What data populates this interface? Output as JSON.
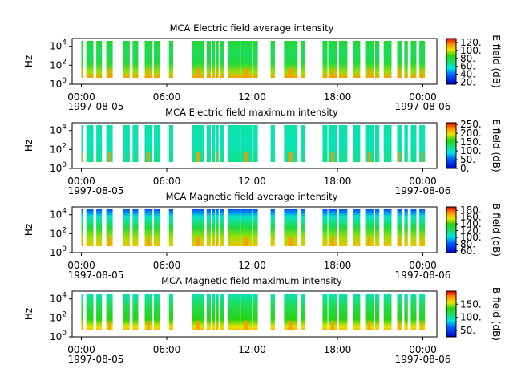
{
  "chart_data": [
    {
      "type": "heatmap",
      "title": "MCA  Electric field average intensity",
      "ylabel": "Hz",
      "y_ticks": [
        {
          "base": "10",
          "exp": "0"
        },
        {
          "base": "10",
          "exp": "2"
        },
        {
          "base": "10",
          "exp": "4"
        }
      ],
      "x_ticks": [
        "00:00",
        "06:00",
        "12:00",
        "18:00",
        "00:00"
      ],
      "x_dates": [
        "1997-08-05",
        "1997-08-06"
      ],
      "colorbar": {
        "label": "E field (dB)",
        "ticks": [
          "20.",
          "40.",
          "60.",
          "80.",
          "100.",
          "120."
        ],
        "range": [
          15,
          130
        ]
      },
      "base_level": [
        55,
        60
      ],
      "gradient": "e_avg"
    },
    {
      "type": "heatmap",
      "title": "MCA  Electric field maximum intensity",
      "ylabel": "Hz",
      "y_ticks": [
        {
          "base": "10",
          "exp": "0"
        },
        {
          "base": "10",
          "exp": "2"
        },
        {
          "base": "10",
          "exp": "4"
        }
      ],
      "x_ticks": [
        "00:00",
        "06:00",
        "12:00",
        "18:00",
        "00:00"
      ],
      "x_dates": [
        "1997-08-05",
        "1997-08-06"
      ],
      "colorbar": {
        "label": "E field (dB)",
        "ticks": [
          "0.",
          "50.",
          "100.",
          "150.",
          "200.",
          "250."
        ],
        "range": [
          0,
          260
        ]
      },
      "base_level": [
        85,
        105
      ],
      "gradient": "e_max"
    },
    {
      "type": "heatmap",
      "title": "MCA  Magnetic field average intensity",
      "ylabel": "Hz",
      "y_ticks": [
        {
          "base": "10",
          "exp": "0"
        },
        {
          "base": "10",
          "exp": "2"
        },
        {
          "base": "10",
          "exp": "4"
        }
      ],
      "x_ticks": [
        "00:00",
        "06:00",
        "12:00",
        "18:00",
        "00:00"
      ],
      "x_dates": [
        "1997-08-05",
        "1997-08-06"
      ],
      "colorbar": {
        "label": "B field (dB)",
        "ticks": [
          "60.",
          "80.",
          "100.",
          "120.",
          "140.",
          "160.",
          "180."
        ],
        "range": [
          55,
          190
        ]
      },
      "base_level": [
        115,
        125
      ],
      "gradient": "b_avg"
    },
    {
      "type": "heatmap",
      "title": "MCA  Magnetic field maximum intensity",
      "ylabel": "Hz",
      "y_ticks": [
        {
          "base": "10",
          "exp": "0"
        },
        {
          "base": "10",
          "exp": "2"
        },
        {
          "base": "10",
          "exp": "4"
        }
      ],
      "x_ticks": [
        "00:00",
        "06:00",
        "12:00",
        "18:00",
        "00:00"
      ],
      "x_dates": [
        "1997-08-05",
        "1997-08-06"
      ],
      "colorbar": {
        "label": "B field (dB)",
        "ticks": [
          "50.",
          "100.",
          "150."
        ],
        "range": [
          25,
          200
        ]
      },
      "base_level": [
        110,
        130
      ],
      "gradient": "b_max"
    }
  ],
  "data_intervals_hours": [
    [
      0.0,
      0.1
    ],
    [
      0.35,
      0.85
    ],
    [
      1.05,
      1.45
    ],
    [
      1.75,
      2.2
    ],
    [
      2.95,
      3.4
    ],
    [
      3.6,
      4.0
    ],
    [
      4.45,
      5.0
    ],
    [
      5.1,
      5.5
    ],
    [
      6.15,
      6.45
    ],
    [
      7.8,
      8.6
    ],
    [
      8.8,
      9.1
    ],
    [
      9.2,
      9.4
    ],
    [
      9.45,
      9.65
    ],
    [
      9.75,
      10.05
    ],
    [
      10.3,
      11.2
    ],
    [
      11.2,
      12.0
    ],
    [
      12.05,
      12.4
    ],
    [
      13.3,
      13.6
    ],
    [
      14.25,
      15.2
    ],
    [
      15.4,
      15.7
    ],
    [
      16.95,
      17.3
    ],
    [
      17.35,
      18.0
    ],
    [
      18.1,
      18.7
    ],
    [
      19.1,
      19.6
    ],
    [
      19.95,
      20.55
    ],
    [
      20.65,
      20.95
    ],
    [
      21.25,
      21.8
    ],
    [
      22.2,
      22.55
    ],
    [
      22.7,
      22.95
    ],
    [
      23.15,
      23.55
    ],
    [
      23.75,
      24.15
    ]
  ]
}
